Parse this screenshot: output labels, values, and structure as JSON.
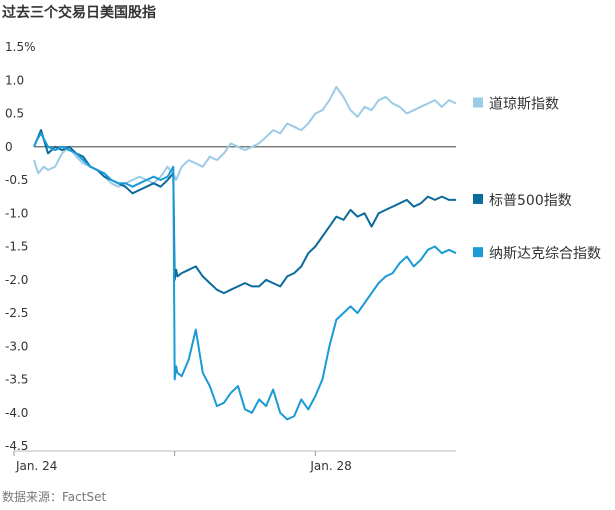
{
  "title": "过去三个交易日美国股指",
  "source": "数据来源：FactSet",
  "chart_data": {
    "type": "line",
    "title": "过去三个交易日美国股指",
    "y_tick_labels": [
      "1.5%",
      "1.0",
      "0.5",
      "0",
      "-0.5",
      "-1.0",
      "-1.5",
      "-2.0",
      "-2.5",
      "-3.0",
      "-3.5",
      "-4.0",
      "-4.5"
    ],
    "y_tick_values": [
      1.5,
      1.0,
      0.5,
      0,
      -0.5,
      -1.0,
      -1.5,
      -2.0,
      -2.5,
      -3.0,
      -3.5,
      -4.0,
      -4.5
    ],
    "ylim": [
      -4.5,
      1.5
    ],
    "xlim": [
      0,
      3
    ],
    "x_tick_labels": [
      {
        "x": 0,
        "label": "Jan. 24"
      },
      {
        "x": 2,
        "label": "Jan. 28"
      }
    ],
    "x_unit": "trading days",
    "zero_line": true,
    "grid": false,
    "legend_position": "right, at line ends",
    "series": [
      {
        "name": "道琼斯指数",
        "color": "#9ccbe8",
        "x": [
          0,
          0.03,
          0.07,
          0.1,
          0.15,
          0.2,
          0.25,
          0.3,
          0.35,
          0.4,
          0.45,
          0.5,
          0.55,
          0.6,
          0.65,
          0.7,
          0.75,
          0.8,
          0.85,
          0.9,
          0.95,
          1.0,
          1.01,
          1.05,
          1.1,
          1.15,
          1.2,
          1.25,
          1.3,
          1.35,
          1.4,
          1.45,
          1.5,
          1.55,
          1.6,
          1.65,
          1.7,
          1.75,
          1.8,
          1.85,
          1.9,
          1.95,
          2.0,
          2.05,
          2.1,
          2.15,
          2.2,
          2.25,
          2.3,
          2.35,
          2.4,
          2.45,
          2.5,
          2.55,
          2.6,
          2.65,
          2.7,
          2.75,
          2.8,
          2.85,
          2.9,
          2.95,
          3.0
        ],
        "values": [
          -0.2,
          -0.4,
          -0.3,
          -0.35,
          -0.3,
          -0.1,
          0.0,
          -0.15,
          -0.25,
          -0.3,
          -0.35,
          -0.45,
          -0.55,
          -0.6,
          -0.55,
          -0.5,
          -0.45,
          -0.5,
          -0.55,
          -0.45,
          -0.3,
          -0.45,
          -0.5,
          -0.3,
          -0.2,
          -0.25,
          -0.3,
          -0.15,
          -0.2,
          -0.1,
          0.05,
          0.0,
          -0.05,
          0.0,
          0.05,
          0.15,
          0.25,
          0.2,
          0.35,
          0.3,
          0.25,
          0.35,
          0.5,
          0.55,
          0.7,
          0.9,
          0.75,
          0.55,
          0.45,
          0.6,
          0.55,
          0.7,
          0.75,
          0.65,
          0.6,
          0.5,
          0.55,
          0.6,
          0.65,
          0.7,
          0.6,
          0.7,
          0.65
        ]
      },
      {
        "name": "标普500指数",
        "color": "#0a6b9c",
        "x": [
          0,
          0.02,
          0.05,
          0.1,
          0.15,
          0.2,
          0.25,
          0.3,
          0.35,
          0.4,
          0.45,
          0.5,
          0.55,
          0.6,
          0.65,
          0.7,
          0.75,
          0.8,
          0.85,
          0.9,
          0.95,
          0.99,
          1.0,
          1.01,
          1.02,
          1.05,
          1.1,
          1.15,
          1.2,
          1.25,
          1.3,
          1.35,
          1.4,
          1.45,
          1.5,
          1.55,
          1.6,
          1.65,
          1.7,
          1.75,
          1.8,
          1.85,
          1.9,
          1.95,
          2.0,
          2.05,
          2.1,
          2.15,
          2.2,
          2.25,
          2.3,
          2.35,
          2.4,
          2.45,
          2.5,
          2.55,
          2.6,
          2.65,
          2.7,
          2.75,
          2.8,
          2.85,
          2.9,
          2.95,
          3.0
        ],
        "values": [
          0.0,
          0.1,
          0.25,
          -0.1,
          0.0,
          -0.05,
          0.0,
          -0.1,
          -0.15,
          -0.3,
          -0.35,
          -0.45,
          -0.5,
          -0.55,
          -0.6,
          -0.7,
          -0.65,
          -0.6,
          -0.55,
          -0.6,
          -0.5,
          -0.4,
          -2.0,
          -1.85,
          -1.95,
          -1.9,
          -1.85,
          -1.8,
          -1.95,
          -2.05,
          -2.15,
          -2.2,
          -2.15,
          -2.1,
          -2.05,
          -2.1,
          -2.1,
          -2.0,
          -2.05,
          -2.1,
          -1.95,
          -1.9,
          -1.8,
          -1.6,
          -1.5,
          -1.35,
          -1.2,
          -1.05,
          -1.1,
          -0.95,
          -1.05,
          -1.0,
          -1.2,
          -1.0,
          -0.95,
          -0.9,
          -0.85,
          -0.8,
          -0.9,
          -0.85,
          -0.75,
          -0.8,
          -0.75,
          -0.8,
          -0.8
        ]
      },
      {
        "name": "纳斯达克综合指数",
        "color": "#1a9ad6",
        "x": [
          0,
          0.02,
          0.05,
          0.1,
          0.15,
          0.2,
          0.25,
          0.3,
          0.35,
          0.4,
          0.45,
          0.5,
          0.55,
          0.6,
          0.65,
          0.7,
          0.75,
          0.8,
          0.85,
          0.9,
          0.95,
          0.99,
          1.0,
          1.01,
          1.02,
          1.05,
          1.1,
          1.15,
          1.2,
          1.25,
          1.3,
          1.35,
          1.4,
          1.45,
          1.5,
          1.55,
          1.6,
          1.65,
          1.7,
          1.75,
          1.8,
          1.85,
          1.9,
          1.95,
          2.0,
          2.05,
          2.1,
          2.15,
          2.2,
          2.25,
          2.3,
          2.35,
          2.4,
          2.45,
          2.5,
          2.55,
          2.6,
          2.65,
          2.7,
          2.75,
          2.8,
          2.85,
          2.9,
          2.95,
          3.0
        ],
        "values": [
          0.0,
          0.1,
          0.2,
          0.0,
          -0.05,
          0.0,
          -0.05,
          -0.1,
          -0.2,
          -0.3,
          -0.35,
          -0.4,
          -0.5,
          -0.55,
          -0.55,
          -0.6,
          -0.55,
          -0.5,
          -0.45,
          -0.5,
          -0.45,
          -0.3,
          -3.5,
          -3.3,
          -3.4,
          -3.45,
          -3.2,
          -2.75,
          -3.4,
          -3.6,
          -3.9,
          -3.85,
          -3.7,
          -3.6,
          -3.95,
          -4.0,
          -3.8,
          -3.9,
          -3.65,
          -4.0,
          -4.1,
          -4.05,
          -3.8,
          -3.95,
          -3.75,
          -3.5,
          -3.0,
          -2.6,
          -2.5,
          -2.4,
          -2.5,
          -2.35,
          -2.2,
          -2.05,
          -1.95,
          -1.9,
          -1.75,
          -1.65,
          -1.8,
          -1.7,
          -1.55,
          -1.5,
          -1.6,
          -1.55,
          -1.6
        ]
      }
    ]
  }
}
